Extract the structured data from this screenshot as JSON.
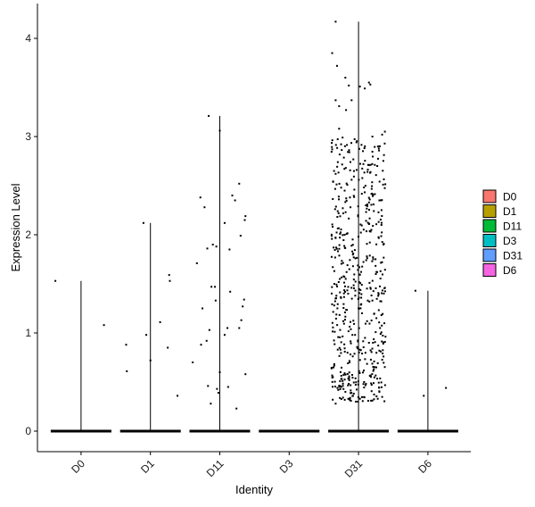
{
  "chart_data": {
    "type": "violin",
    "title": "",
    "xlabel": "Identity",
    "ylabel": "Expression Level",
    "categories": [
      "D0",
      "D1",
      "D11",
      "D3",
      "D31",
      "D6"
    ],
    "ylim": [
      -0.2,
      4.35
    ],
    "yticks": [
      0,
      1,
      2,
      3,
      4
    ],
    "grid": false,
    "legend": {
      "placement": "right",
      "entries": [
        {
          "label": "D0",
          "color": "#F8766D"
        },
        {
          "label": "D1",
          "color": "#B79F00"
        },
        {
          "label": "D11",
          "color": "#00BA38"
        },
        {
          "label": "D3",
          "color": "#00BFC4"
        },
        {
          "label": "D31",
          "color": "#619CFF"
        },
        {
          "label": "D6",
          "color": "#F564E3"
        }
      ]
    },
    "series": [
      {
        "name": "D0",
        "max": 1.53,
        "points": [
          {
            "x": -0.37,
            "y": 1.53
          },
          {
            "x": 0.33,
            "y": 1.08
          }
        ]
      },
      {
        "name": "D1",
        "max": 2.12,
        "points": [
          {
            "x": -0.1,
            "y": 2.12
          },
          {
            "x": -0.35,
            "y": 0.88
          },
          {
            "x": -0.06,
            "y": 0.98
          },
          {
            "x": 0.14,
            "y": 1.11
          },
          {
            "x": 0.27,
            "y": 1.59
          },
          {
            "x": 0.28,
            "y": 1.53
          },
          {
            "x": 0.25,
            "y": 0.85
          },
          {
            "x": -0.34,
            "y": 0.61
          },
          {
            "x": 0.0,
            "y": 0.72
          },
          {
            "x": 0.39,
            "y": 0.36
          }
        ]
      },
      {
        "name": "D11",
        "max": 3.21,
        "points": [
          {
            "x": -0.16,
            "y": 3.21
          },
          {
            "x": 0.0,
            "y": 3.06
          },
          {
            "x": 0.28,
            "y": 2.52
          },
          {
            "x": 0.18,
            "y": 2.4
          },
          {
            "x": 0.22,
            "y": 2.35
          },
          {
            "x": -0.28,
            "y": 2.38
          },
          {
            "x": -0.22,
            "y": 2.28
          },
          {
            "x": 0.37,
            "y": 2.19
          },
          {
            "x": 0.36,
            "y": 2.15
          },
          {
            "x": 0.07,
            "y": 2.12
          },
          {
            "x": 0.3,
            "y": 1.99
          },
          {
            "x": -0.1,
            "y": 1.9
          },
          {
            "x": -0.05,
            "y": 1.88
          },
          {
            "x": -0.18,
            "y": 1.86
          },
          {
            "x": 0.14,
            "y": 1.85
          },
          {
            "x": -0.33,
            "y": 1.71
          },
          {
            "x": -0.12,
            "y": 1.47
          },
          {
            "x": -0.07,
            "y": 1.47
          },
          {
            "x": 0.15,
            "y": 1.42
          },
          {
            "x": -0.06,
            "y": 1.33
          },
          {
            "x": 0.35,
            "y": 1.34
          },
          {
            "x": 0.33,
            "y": 1.27
          },
          {
            "x": -0.25,
            "y": 1.25
          },
          {
            "x": 0.11,
            "y": 1.05
          },
          {
            "x": 0.28,
            "y": 1.05
          },
          {
            "x": 0.31,
            "y": 1.13
          },
          {
            "x": -0.15,
            "y": 1.03
          },
          {
            "x": -0.27,
            "y": 0.88
          },
          {
            "x": -0.19,
            "y": 0.92
          },
          {
            "x": 0.07,
            "y": 0.98
          },
          {
            "x": -0.39,
            "y": 0.7
          },
          {
            "x": 0.0,
            "y": 0.6
          },
          {
            "x": 0.37,
            "y": 0.58
          },
          {
            "x": -0.17,
            "y": 0.46
          },
          {
            "x": -0.04,
            "y": 0.43
          },
          {
            "x": 0.12,
            "y": 0.45
          },
          {
            "x": -0.13,
            "y": 0.28
          },
          {
            "x": 0.24,
            "y": 0.23
          },
          {
            "x": -0.02,
            "y": 0.39
          }
        ]
      },
      {
        "name": "D3",
        "max": 0,
        "points": []
      },
      {
        "name": "D31",
        "max": 4.17,
        "points": [
          {
            "x": -0.33,
            "y": 4.17
          },
          {
            "x": -0.38,
            "y": 3.85
          },
          {
            "x": -0.31,
            "y": 3.72
          },
          {
            "x": -0.19,
            "y": 3.6
          },
          {
            "x": 0.17,
            "y": 3.53
          },
          {
            "x": 0.15,
            "y": 3.55
          },
          {
            "x": -0.14,
            "y": 3.52
          },
          {
            "x": 0.02,
            "y": 3.51
          },
          {
            "x": 0.09,
            "y": 3.49
          },
          {
            "x": -0.33,
            "y": 3.37
          },
          {
            "x": -0.28,
            "y": 3.31
          },
          {
            "x": -0.18,
            "y": 3.27
          },
          {
            "x": -0.1,
            "y": 3.37
          },
          {
            "x": -0.28,
            "y": 3.08
          },
          {
            "x": 0.38,
            "y": 3.05
          },
          {
            "x": 0.34,
            "y": 3.02
          },
          {
            "x": 0.2,
            "y": 3.0
          },
          {
            "x": -0.23,
            "y": 2.99
          },
          {
            "x": 0.28,
            "y": 2.9
          },
          {
            "x": -0.38,
            "y": 2.87
          },
          {
            "x": 0.07,
            "y": 2.72
          },
          {
            "x": 0.27,
            "y": 2.7
          },
          {
            "x": -0.33,
            "y": 2.62
          },
          {
            "x": 0.1,
            "y": 2.5
          },
          {
            "x": -0.1,
            "y": 2.56
          },
          {
            "x": 0.3,
            "y": 2.35
          },
          {
            "x": -0.3,
            "y": 2.24
          },
          {
            "x": 0.33,
            "y": 2.1
          },
          {
            "x": -0.2,
            "y": 2.0
          },
          {
            "x": 0.36,
            "y": 1.9
          },
          {
            "x": -0.36,
            "y": 1.87
          },
          {
            "x": 0.12,
            "y": 1.78
          },
          {
            "x": -0.08,
            "y": 1.68
          },
          {
            "x": 0.25,
            "y": 1.6
          },
          {
            "x": -0.27,
            "y": 1.55
          },
          {
            "x": 0.38,
            "y": 1.46
          },
          {
            "x": -0.15,
            "y": 1.4
          },
          {
            "x": 0.2,
            "y": 1.33
          },
          {
            "x": -0.35,
            "y": 1.28
          },
          {
            "x": 0.05,
            "y": 1.2
          },
          {
            "x": -0.22,
            "y": 1.12
          },
          {
            "x": 0.31,
            "y": 1.05
          },
          {
            "x": -0.05,
            "y": 0.98
          },
          {
            "x": 0.15,
            "y": 0.9
          },
          {
            "x": -0.3,
            "y": 0.83
          },
          {
            "x": 0.36,
            "y": 0.76
          },
          {
            "x": -0.13,
            "y": 0.7
          },
          {
            "x": 0.22,
            "y": 0.63
          },
          {
            "x": -0.37,
            "y": 0.55
          },
          {
            "x": 0.08,
            "y": 0.5
          },
          {
            "x": -0.25,
            "y": 0.45
          },
          {
            "x": 0.3,
            "y": 0.4
          },
          {
            "x": -0.08,
            "y": 0.36
          },
          {
            "x": 0.18,
            "y": 0.31
          },
          {
            "x": -0.33,
            "y": 0.28
          },
          {
            "x": 0.02,
            "y": 0.33
          }
        ]
      },
      {
        "name": "D6",
        "max": 1.43,
        "points": [
          {
            "x": -0.18,
            "y": 1.43
          },
          {
            "x": -0.06,
            "y": 0.36
          },
          {
            "x": 0.26,
            "y": 0.44
          }
        ]
      }
    ]
  }
}
